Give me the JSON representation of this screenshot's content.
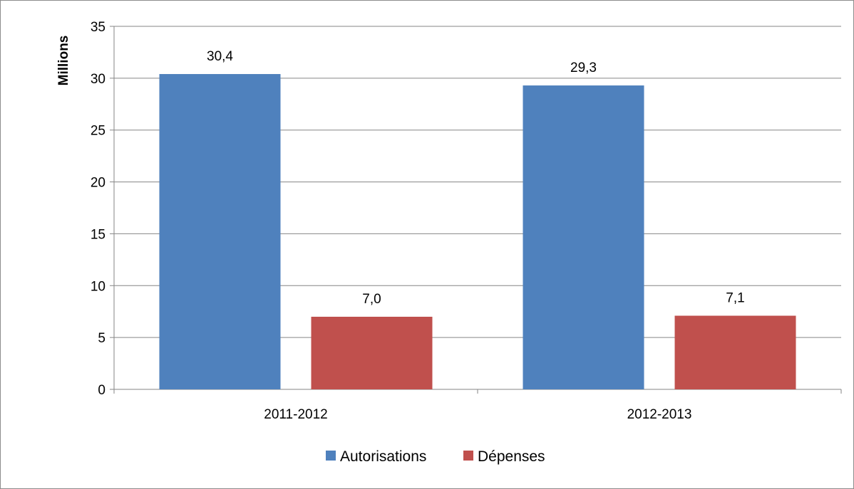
{
  "chart_data": {
    "type": "bar",
    "categories": [
      "2011-2012",
      "2012-2013"
    ],
    "series": [
      {
        "name": "Autorisations",
        "values": [
          30.4,
          29.3
        ],
        "labels": [
          "30,4",
          "29,3"
        ],
        "color": "#4f81bd"
      },
      {
        "name": "Dépenses",
        "values": [
          7.0,
          7.1
        ],
        "labels": [
          "7,0",
          "7,1"
        ],
        "color": "#c0504d"
      }
    ],
    "ylabel": "Millions",
    "ylim": [
      0,
      35
    ],
    "yticks": [
      0,
      5,
      10,
      15,
      20,
      25,
      30,
      35
    ],
    "grid": true,
    "legend_position": "bottom",
    "gridline_color": "#868686",
    "axis_color": "#868686"
  }
}
